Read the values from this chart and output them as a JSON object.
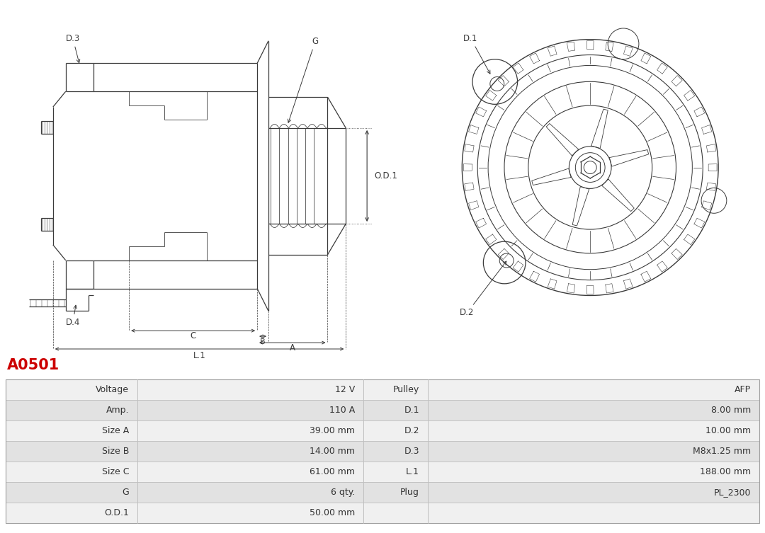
{
  "title": "A0501",
  "title_color": "#cc0000",
  "bg_color": "#ffffff",
  "table_rows": [
    [
      "Voltage",
      "12 V",
      "Pulley",
      "AFP"
    ],
    [
      "Amp.",
      "110 A",
      "D.1",
      "8.00 mm"
    ],
    [
      "Size A",
      "39.00 mm",
      "D.2",
      "10.00 mm"
    ],
    [
      "Size B",
      "14.00 mm",
      "D.3",
      "M8x1.25 mm"
    ],
    [
      "Size C",
      "61.00 mm",
      "L.1",
      "188.00 mm"
    ],
    [
      "G",
      "6 qty.",
      "Plug",
      "PL_2300"
    ],
    [
      "O.D.1",
      "50.00 mm",
      "",
      ""
    ]
  ],
  "line_color": "#3a3a3a",
  "label_color": "#3a3a3a",
  "row_bg_light": "#f0f0f0",
  "row_bg_dark": "#e2e2e2",
  "title_fontsize": 15,
  "table_fontsize": 9
}
